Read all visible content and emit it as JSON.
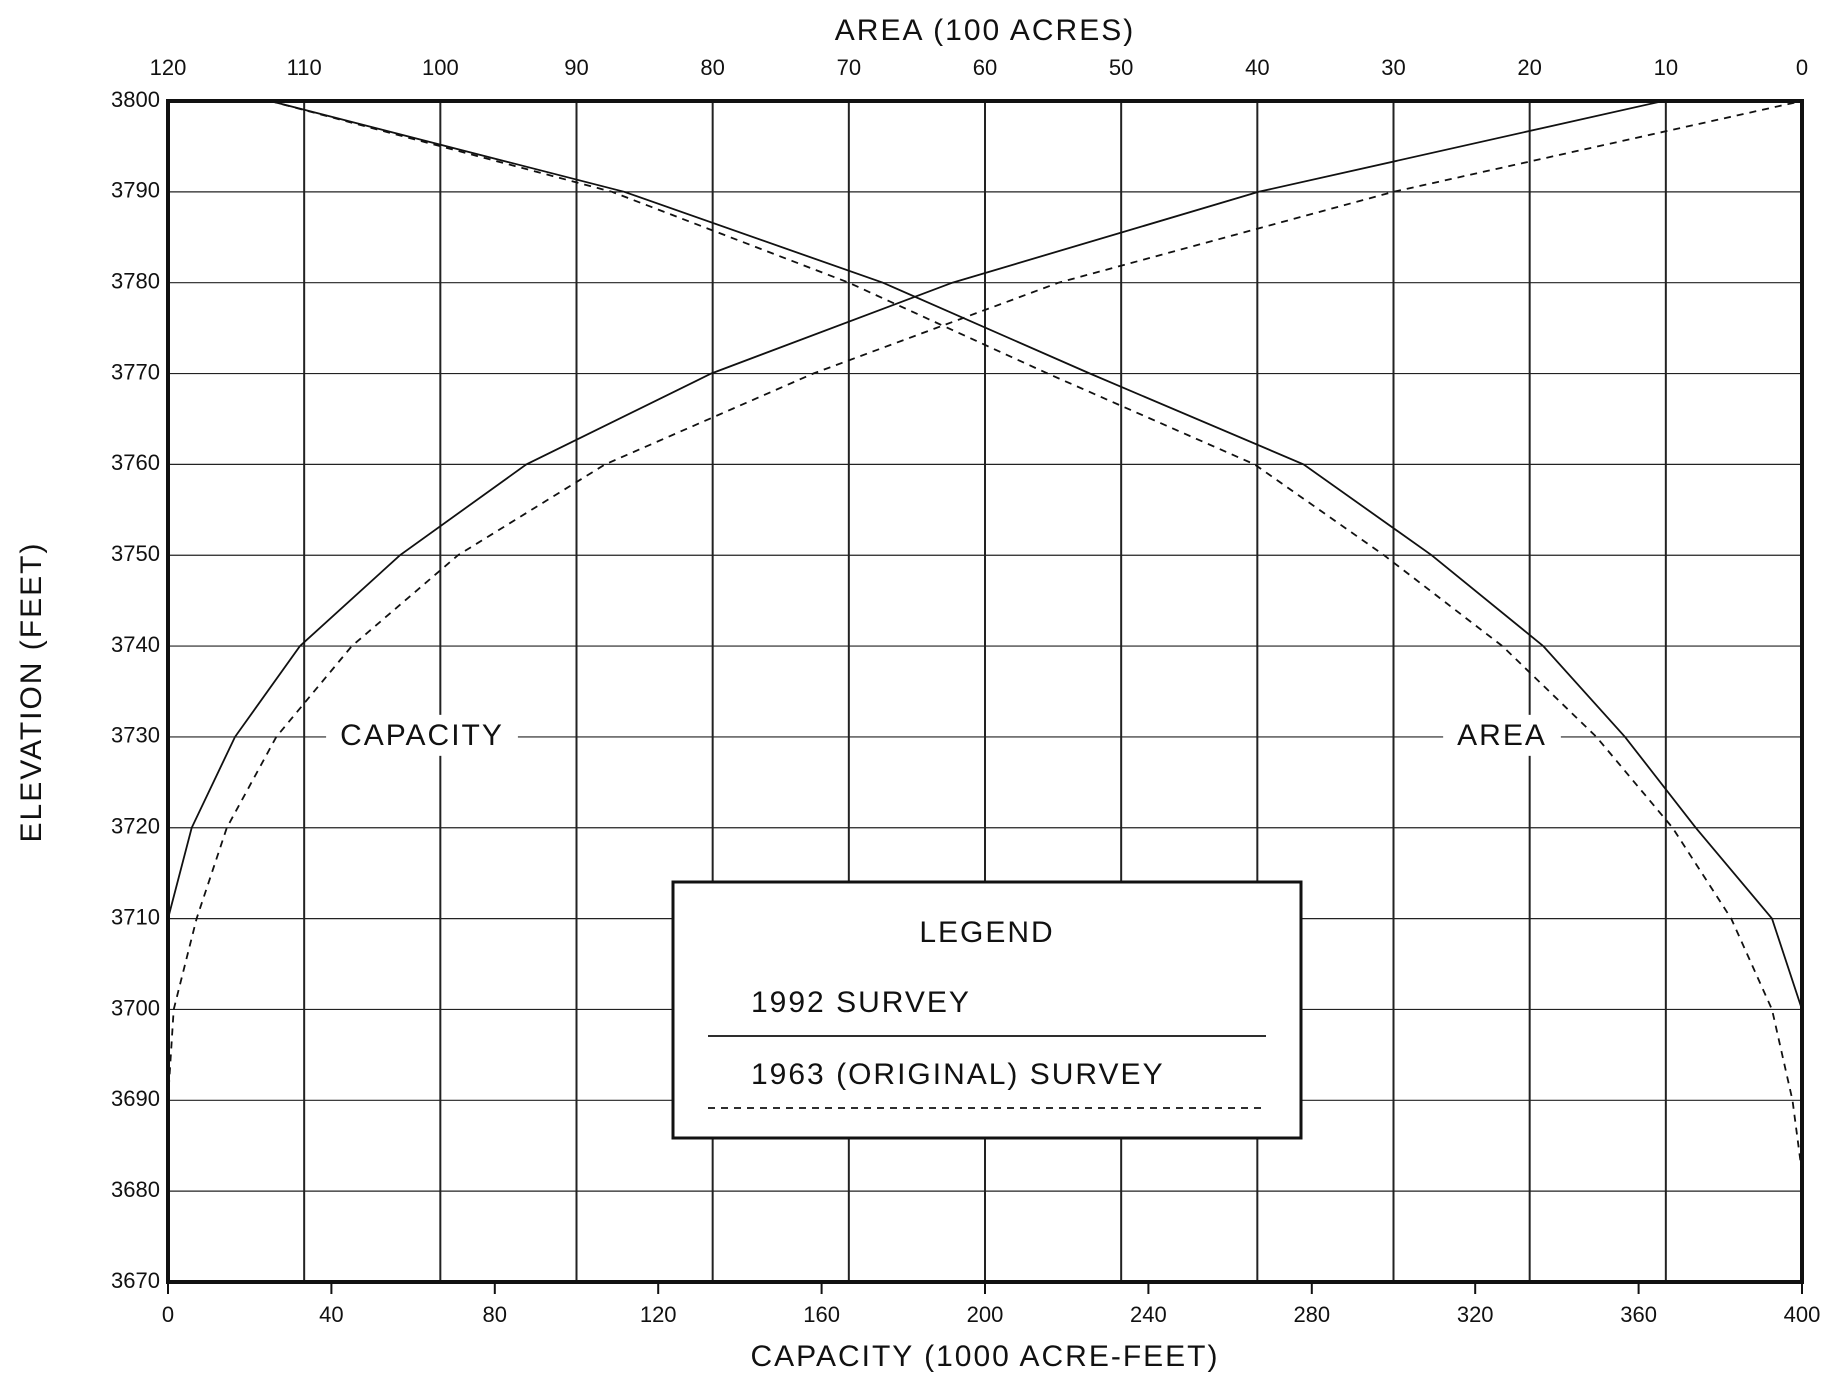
{
  "chart_data": {
    "type": "line",
    "x_label": "CAPACITY (1000 ACRE-FEET)",
    "x2_label": "AREA (100 ACRES)",
    "y_label": "ELEVATION (FEET)",
    "xlim": [
      0,
      400
    ],
    "xticks": [
      0,
      40,
      80,
      120,
      160,
      200,
      240,
      280,
      320,
      360,
      400
    ],
    "x2lim": [
      120,
      0
    ],
    "x2ticks": [
      120,
      110,
      100,
      90,
      80,
      70,
      60,
      50,
      40,
      30,
      20,
      10,
      0
    ],
    "ylim": [
      3670,
      3800
    ],
    "yticks": [
      3670,
      3680,
      3690,
      3700,
      3710,
      3720,
      3730,
      3740,
      3750,
      3760,
      3770,
      3780,
      3790,
      3800
    ],
    "grid": true,
    "annotations": {
      "capacity": "CAPACITY",
      "area": "AREA"
    },
    "legend_title": "LEGEND",
    "series": [
      {
        "name": "1992 SURVEY",
        "color": "#111111",
        "dash": "solid",
        "capacity": {
          "x": [
            0,
            5.8,
            16.4,
            32.3,
            56.8,
            87.7,
            133,
            192,
            267,
            366
          ],
          "y": [
            3710,
            3720,
            3730,
            3740,
            3750,
            3760,
            3770,
            3780,
            3790,
            3800
          ]
        },
        "area": {
          "x": [
            112.5,
            86.5,
            67.5,
            52.3,
            36.6,
            27.2,
            19,
            13,
            7.8,
            2.2,
            0
          ],
          "y": [
            3800,
            3790,
            3780,
            3770,
            3760,
            3750,
            3740,
            3730,
            3720,
            3710,
            3700
          ]
        }
      },
      {
        "name": "1963 (ORIGINAL) SURVEY",
        "color": "#111111",
        "dash": "dashed",
        "capacity": {
          "x": [
            0,
            1.4,
            7,
            14.4,
            26.5,
            45,
            71,
            107,
            158,
            218,
            300,
            400
          ],
          "y": [
            3690,
            3700,
            3710,
            3720,
            3730,
            3740,
            3750,
            3760,
            3770,
            3780,
            3790,
            3800
          ]
        },
        "area": {
          "x": [
            112.5,
            87.4,
            70,
            55.4,
            40.2,
            30.7,
            22,
            15.1,
            9.5,
            5.2,
            2.2,
            0.7,
            0
          ],
          "y": [
            3800,
            3790,
            3780,
            3770,
            3760,
            3750,
            3740,
            3730,
            3720,
            3710,
            3700,
            3690,
            3682
          ]
        }
      }
    ]
  }
}
